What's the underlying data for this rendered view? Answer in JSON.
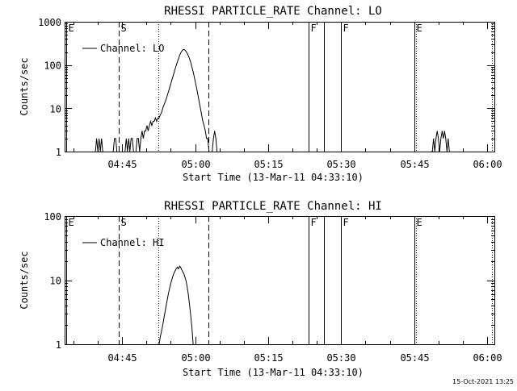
{
  "footer": {
    "stamp": "15-Oct-2021 13:25"
  },
  "chart_data": [
    {
      "type": "line",
      "title": "RHESSI PARTICLE_RATE Channel: LO",
      "xlabel": "Start Time (13-Mar-11 04:33:10)",
      "ylabel": "Counts/sec",
      "y_scale": "log",
      "ylim": [
        1,
        1000
      ],
      "y_ticks": [
        "1",
        "10",
        "100",
        "1000"
      ],
      "x_unit": "seconds after 04:33:10",
      "xlim": [
        0,
        5300
      ],
      "x_ticks": [
        {
          "label": "04:45",
          "t": 710
        },
        {
          "label": "05:00",
          "t": 1610
        },
        {
          "label": "05:15",
          "t": 2510
        },
        {
          "label": "05:30",
          "t": 3410
        },
        {
          "label": "05:45",
          "t": 4310
        },
        {
          "label": "06:00",
          "t": 5210
        }
      ],
      "legend": {
        "label": "Channel: LO",
        "placement": "top-left"
      },
      "markers": [
        {
          "label": "E",
          "t": 20,
          "style": "solid"
        },
        {
          "label": "S",
          "t": 670,
          "style": "dashed"
        },
        {
          "label": "",
          "t": 1160,
          "style": "dotted"
        },
        {
          "label": "",
          "t": 1775,
          "style": "dashed"
        },
        {
          "label": "F",
          "t": 3010,
          "style": "solid"
        },
        {
          "label": "",
          "t": 3200,
          "style": "solid"
        },
        {
          "label": "F",
          "t": 3410,
          "style": "solid"
        },
        {
          "label": "E",
          "t": 4310,
          "style": "solid"
        },
        {
          "label": "",
          "t": 4330,
          "style": "dotted"
        },
        {
          "label": "",
          "t": 5270,
          "style": "dotted"
        }
      ],
      "series": [
        {
          "name": "Channel: LO",
          "segments": [
            [
              [
                380,
                1
              ],
              [
                395,
                2
              ],
              [
                410,
                1
              ],
              [
                425,
                2
              ],
              [
                440,
                1
              ],
              [
                455,
                2
              ],
              [
                470,
                1
              ]
            ],
            [
              [
                600,
                1
              ],
              [
                615,
                2
              ],
              [
                630,
                2
              ],
              [
                645,
                1
              ]
            ],
            [
              [
                745,
                1
              ],
              [
                760,
                2
              ],
              [
                775,
                1
              ],
              [
                790,
                2
              ],
              [
                805,
                1
              ],
              [
                820,
                2
              ],
              [
                835,
                2
              ],
              [
                850,
                1
              ]
            ],
            [
              [
                880,
                1
              ],
              [
                895,
                2
              ],
              [
                910,
                2
              ],
              [
                925,
                1
              ],
              [
                940,
                2
              ],
              [
                955,
                3
              ],
              [
                970,
                2
              ],
              [
                985,
                3
              ],
              [
                1000,
                3
              ],
              [
                1015,
                4
              ],
              [
                1030,
                3
              ],
              [
                1045,
                4
              ],
              [
                1060,
                5
              ],
              [
                1075,
                4
              ],
              [
                1090,
                5
              ],
              [
                1105,
                5
              ],
              [
                1120,
                6
              ],
              [
                1135,
                5
              ],
              [
                1150,
                6
              ],
              [
                1165,
                6
              ],
              [
                1180,
                7
              ],
              [
                1195,
                8
              ],
              [
                1210,
                10
              ],
              [
                1225,
                12
              ],
              [
                1240,
                14
              ],
              [
                1255,
                17
              ],
              [
                1270,
                21
              ],
              [
                1285,
                26
              ],
              [
                1300,
                32
              ],
              [
                1315,
                40
              ],
              [
                1330,
                50
              ],
              [
                1345,
                62
              ],
              [
                1360,
                78
              ],
              [
                1375,
                95
              ],
              [
                1390,
                118
              ],
              [
                1405,
                140
              ],
              [
                1420,
                170
              ],
              [
                1435,
                195
              ],
              [
                1450,
                215
              ],
              [
                1465,
                230
              ],
              [
                1480,
                225
              ],
              [
                1495,
                210
              ],
              [
                1510,
                190
              ],
              [
                1525,
                165
              ],
              [
                1540,
                140
              ],
              [
                1555,
                115
              ],
              [
                1570,
                90
              ],
              [
                1585,
                70
              ],
              [
                1600,
                52
              ],
              [
                1615,
                38
              ],
              [
                1630,
                28
              ],
              [
                1645,
                20
              ],
              [
                1660,
                14
              ],
              [
                1675,
                10
              ],
              [
                1690,
                7
              ],
              [
                1705,
                5
              ],
              [
                1720,
                4
              ],
              [
                1735,
                3
              ],
              [
                1750,
                2
              ],
              [
                1765,
                2
              ],
              [
                1780,
                1
              ]
            ],
            [
              [
                1820,
                1
              ],
              [
                1835,
                2
              ],
              [
                1850,
                3
              ],
              [
                1865,
                2
              ],
              [
                1880,
                1
              ]
            ],
            [
              [
                4520,
                1
              ],
              [
                4535,
                1
              ],
              [
                4550,
                2
              ],
              [
                4565,
                1
              ],
              [
                4580,
                2
              ],
              [
                4595,
                3
              ],
              [
                4610,
                2
              ],
              [
                4625,
                1
              ],
              [
                4640,
                2
              ],
              [
                4655,
                3
              ],
              [
                4670,
                2
              ],
              [
                4685,
                3
              ],
              [
                4700,
                2
              ],
              [
                4715,
                1
              ],
              [
                4730,
                2
              ],
              [
                4745,
                1
              ]
            ]
          ]
        }
      ]
    },
    {
      "type": "line",
      "title": "RHESSI PARTICLE_RATE Channel: HI",
      "xlabel": "Start Time (13-Mar-11 04:33:10)",
      "ylabel": "Counts/sec",
      "y_scale": "log",
      "ylim": [
        1,
        100
      ],
      "y_ticks": [
        "1",
        "10",
        "100"
      ],
      "x_unit": "seconds after 04:33:10",
      "xlim": [
        0,
        5300
      ],
      "x_ticks": [
        {
          "label": "04:45",
          "t": 710
        },
        {
          "label": "05:00",
          "t": 1610
        },
        {
          "label": "05:15",
          "t": 2510
        },
        {
          "label": "05:30",
          "t": 3410
        },
        {
          "label": "05:45",
          "t": 4310
        },
        {
          "label": "06:00",
          "t": 5210
        }
      ],
      "legend": {
        "label": "Channel: HI",
        "placement": "top-left"
      },
      "markers": [
        {
          "label": "E",
          "t": 20,
          "style": "solid"
        },
        {
          "label": "S",
          "t": 670,
          "style": "dashed"
        },
        {
          "label": "",
          "t": 1160,
          "style": "dotted"
        },
        {
          "label": "",
          "t": 1775,
          "style": "dashed"
        },
        {
          "label": "F",
          "t": 3010,
          "style": "solid"
        },
        {
          "label": "",
          "t": 3200,
          "style": "solid"
        },
        {
          "label": "F",
          "t": 3410,
          "style": "solid"
        },
        {
          "label": "E",
          "t": 4310,
          "style": "solid"
        },
        {
          "label": "",
          "t": 4330,
          "style": "dotted"
        },
        {
          "label": "",
          "t": 5270,
          "style": "dotted"
        }
      ],
      "series": [
        {
          "name": "Channel: HI",
          "segments": [
            [
              [
                1150,
                1
              ],
              [
                1165,
                1
              ],
              [
                1180,
                1.3
              ],
              [
                1195,
                1.6
              ],
              [
                1210,
                2
              ],
              [
                1225,
                2.6
              ],
              [
                1240,
                3.3
              ],
              [
                1255,
                4.2
              ],
              [
                1270,
                5.3
              ],
              [
                1285,
                6.6
              ],
              [
                1300,
                8
              ],
              [
                1315,
                9.5
              ],
              [
                1330,
                11
              ],
              [
                1345,
                12.5
              ],
              [
                1360,
                13.8
              ],
              [
                1375,
                15
              ],
              [
                1390,
                16
              ],
              [
                1405,
                15
              ],
              [
                1420,
                16.5
              ],
              [
                1435,
                15.5
              ],
              [
                1450,
                14
              ],
              [
                1465,
                13
              ],
              [
                1480,
                11.5
              ],
              [
                1495,
                10
              ],
              [
                1510,
                8
              ],
              [
                1525,
                6
              ],
              [
                1540,
                4.2
              ],
              [
                1555,
                2.8
              ],
              [
                1570,
                1.8
              ],
              [
                1585,
                1
              ]
            ]
          ]
        }
      ]
    }
  ]
}
